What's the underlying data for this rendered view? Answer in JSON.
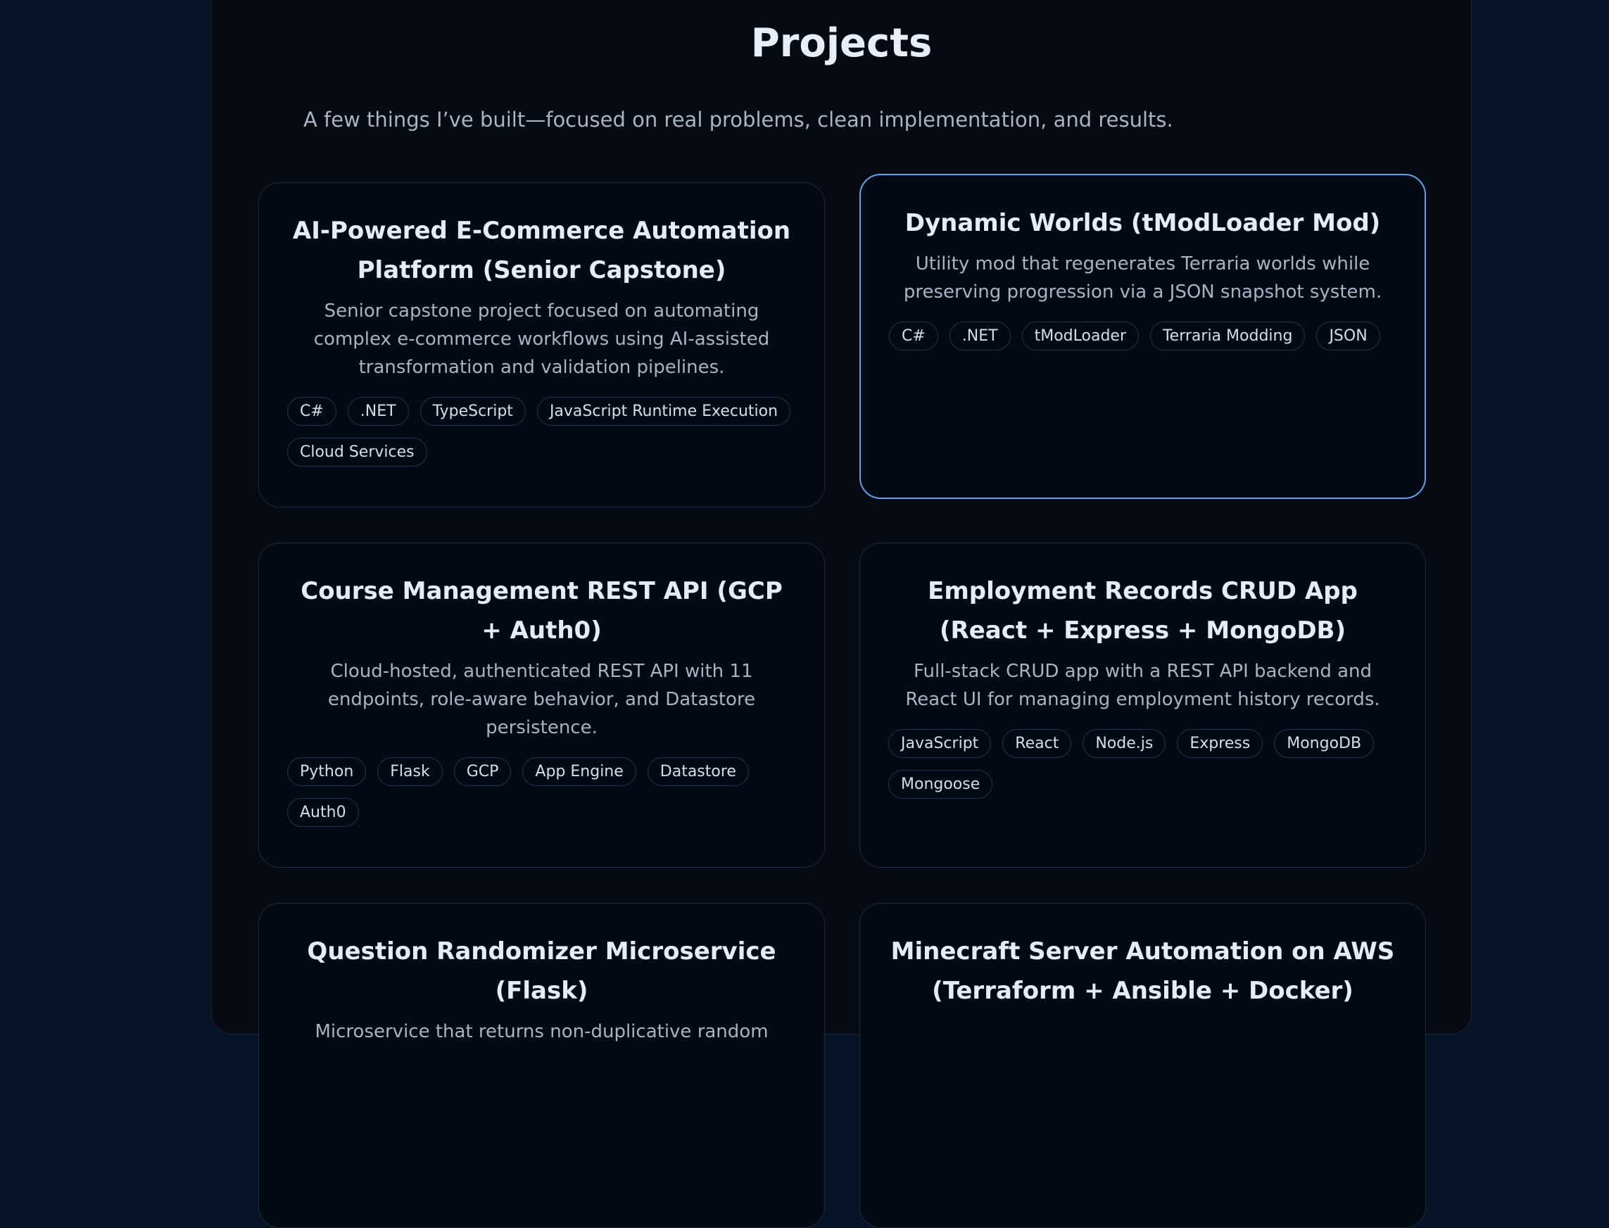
{
  "header": {
    "title": "Projects",
    "subtitle": "A few things I’ve built—focused on real problems, clean implementation, and results."
  },
  "colors": {
    "background": "#061428",
    "panel": "#050a13",
    "card": "#040a14",
    "active_border": "#5ea2ee"
  },
  "projects": [
    {
      "title": "AI-Powered E-Commerce Automation Platform (Senior Capstone)",
      "description": "Senior capstone project focused on automating complex e-commerce workflows using AI-assisted transformation and validation pipelines.",
      "tags": [
        "C#",
        ".NET",
        "TypeScript",
        "JavaScript Runtime Execution",
        "Cloud Services"
      ]
    },
    {
      "title": "Dynamic Worlds (tModLoader Mod)",
      "description": "Utility mod that regenerates Terraria worlds while preserving progression via a JSON snapshot system.",
      "tags": [
        "C#",
        ".NET",
        "tModLoader",
        "Terraria Modding",
        "JSON"
      ],
      "active": true
    },
    {
      "title": "Course Management REST API (GCP + Auth0)",
      "description": "Cloud-hosted, authenticated REST API with 11 endpoints, role-aware behavior, and Datastore persistence.",
      "tags": [
        "Python",
        "Flask",
        "GCP",
        "App Engine",
        "Datastore",
        "Auth0"
      ]
    },
    {
      "title": "Employment Records CRUD App (React + Express + MongoDB)",
      "description": "Full-stack CRUD app with a REST API backend and React UI for managing employment history records.",
      "tags": [
        "JavaScript",
        "React",
        "Node.js",
        "Express",
        "MongoDB",
        "Mongoose"
      ]
    },
    {
      "title": "Question Randomizer Microservice (Flask)",
      "description": "Microservice that returns non-duplicative random",
      "tags": []
    },
    {
      "title": "Minecraft Server Automation on AWS (Terraform + Ansible + Docker)",
      "description": "",
      "tags": []
    }
  ]
}
